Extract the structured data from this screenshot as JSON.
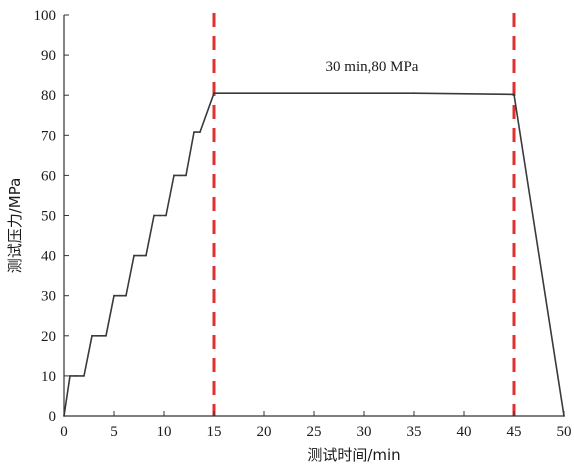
{
  "chart_data": {
    "type": "line",
    "title": "",
    "xlabel": "测试时间/min",
    "ylabel": "测试压力/MPa",
    "xlim": [
      0,
      50
    ],
    "ylim": [
      0,
      100
    ],
    "xticks": [
      0,
      5,
      10,
      15,
      20,
      25,
      30,
      35,
      40,
      45,
      50
    ],
    "yticks": [
      0,
      10,
      20,
      30,
      40,
      50,
      60,
      70,
      80,
      90,
      100
    ],
    "grid": false,
    "legend": "none",
    "series": [
      {
        "color": "#3a3a3a",
        "x": [
          0,
          0.6,
          1.2,
          2.0,
          2.8,
          3.4,
          4.2,
          5.0,
          5.6,
          6.2,
          7.0,
          7.6,
          8.2,
          9.0,
          9.6,
          10.2,
          11.0,
          11.6,
          12.2,
          13.0,
          13.6,
          15.0,
          35.0,
          45.0,
          50.0
        ],
        "y": [
          0,
          10,
          10,
          10,
          20,
          20,
          20,
          30,
          30,
          30,
          40,
          40,
          40,
          50,
          50,
          50,
          60,
          60,
          60,
          70.8,
          70.8,
          80.5,
          80.5,
          80.2,
          0
        ]
      }
    ],
    "vlines": [
      {
        "x": 15,
        "color": "#e03030",
        "style": "dashed"
      },
      {
        "x": 45,
        "color": "#e03030",
        "style": "dashed"
      }
    ],
    "annotations": [
      {
        "text": "30 min,80 MPa",
        "x": 30,
        "y": 86
      }
    ]
  }
}
